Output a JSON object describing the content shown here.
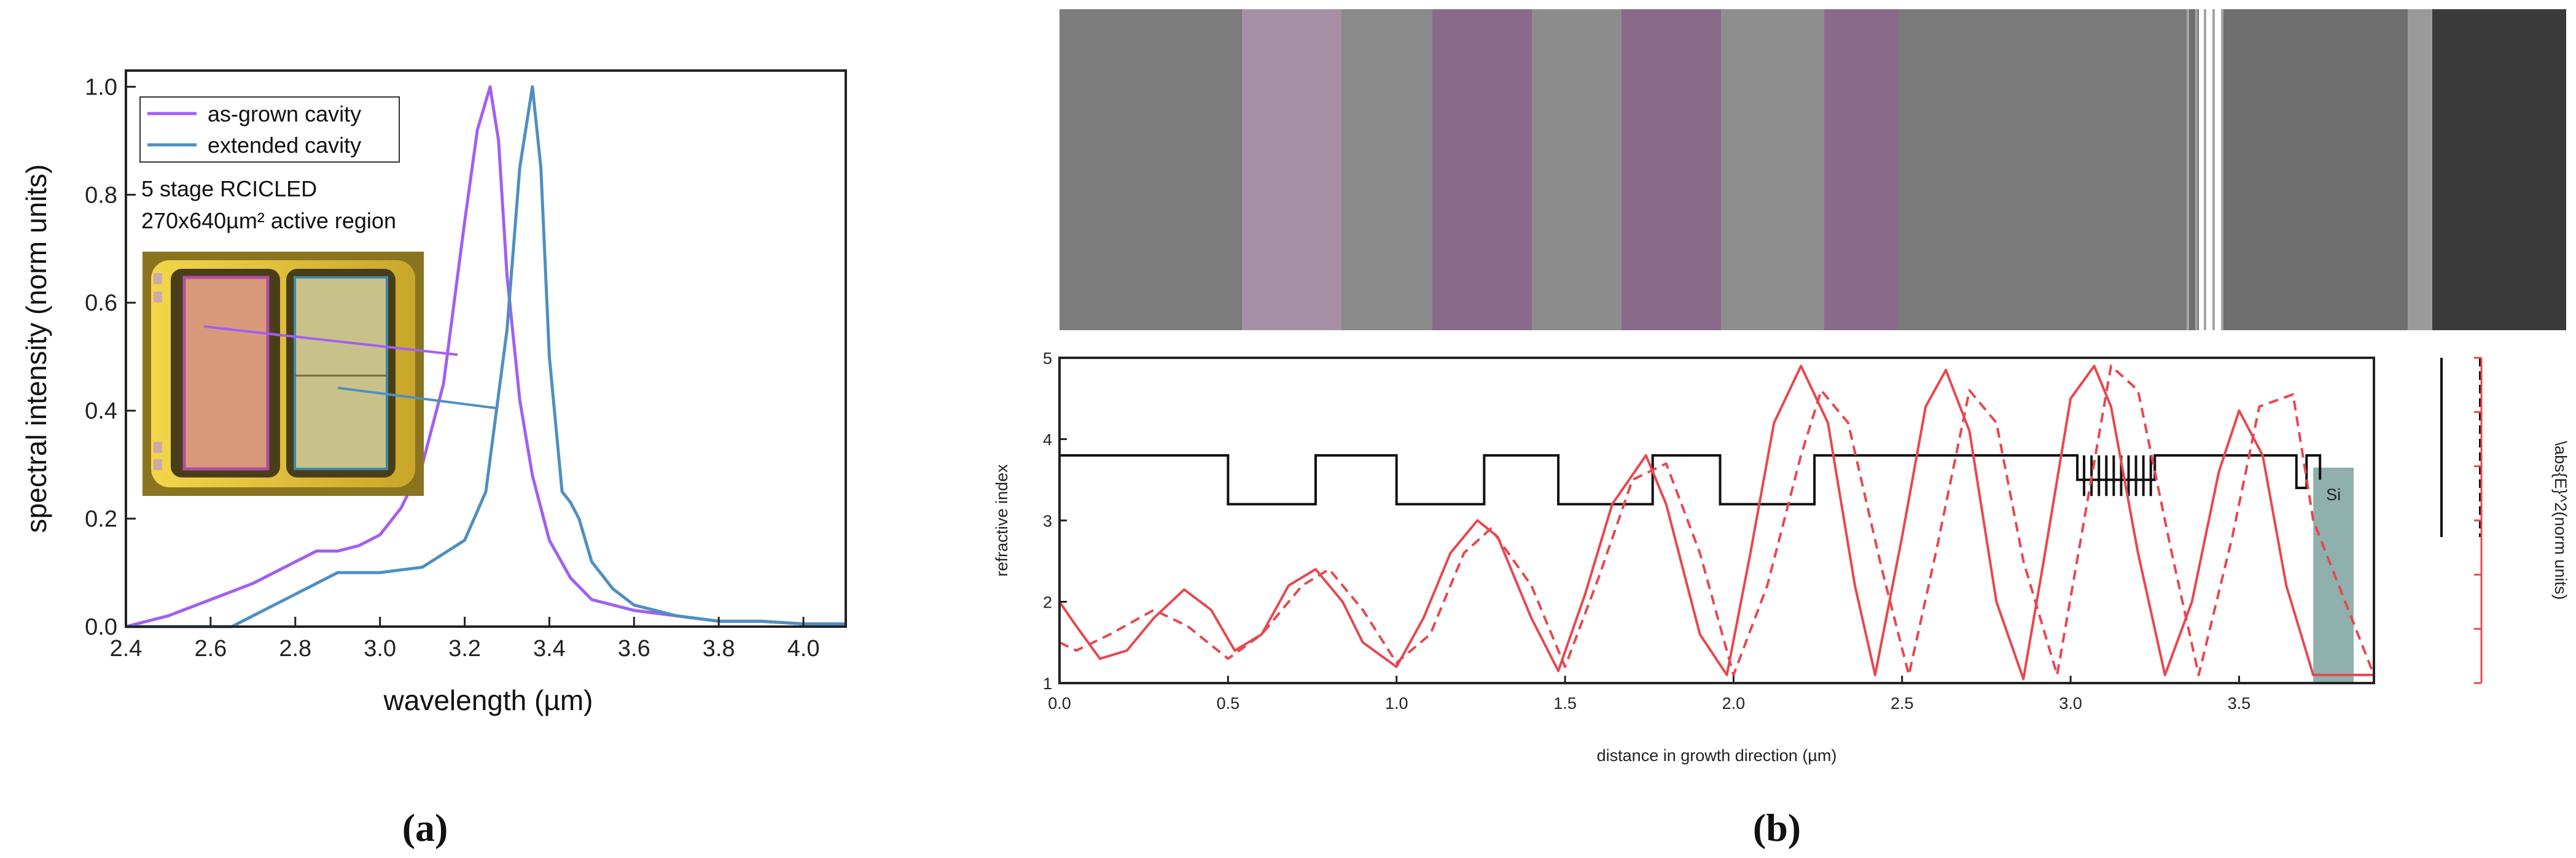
{
  "panel_labels": [
    "(a)",
    "(b)"
  ],
  "chart_data": [
    {
      "type": "line",
      "panel": "(a)",
      "xlabel": "wavelength (µm)",
      "ylabel": "spectral intensity (norm units)",
      "xlim": [
        2.4,
        4.1
      ],
      "ylim": [
        0,
        1.03
      ],
      "xticks": [
        "2.4",
        "2.6",
        "2.8",
        "3.0",
        "3.2",
        "3.4",
        "3.6",
        "3.8",
        "4.0"
      ],
      "yticks": [
        "0.0",
        "0.2",
        "0.4",
        "0.6",
        "0.8",
        "1.0"
      ],
      "legend_position": "top-left",
      "annotation": [
        "5 stage RCICLED",
        "270x640µm² active region"
      ],
      "series": [
        {
          "name": "as-grown cavity",
          "color": "#a25ff2",
          "x": [
            2.4,
            2.5,
            2.6,
            2.7,
            2.75,
            2.8,
            2.85,
            2.9,
            2.95,
            3.0,
            3.05,
            3.1,
            3.15,
            3.2,
            3.23,
            3.26,
            3.28,
            3.3,
            3.33,
            3.36,
            3.4,
            3.45,
            3.5,
            3.55,
            3.6,
            3.7,
            3.8,
            3.9,
            4.0,
            4.1
          ],
          "y": [
            0.0,
            0.02,
            0.05,
            0.08,
            0.1,
            0.12,
            0.14,
            0.14,
            0.15,
            0.17,
            0.22,
            0.3,
            0.45,
            0.75,
            0.92,
            1.0,
            0.9,
            0.65,
            0.42,
            0.28,
            0.16,
            0.09,
            0.05,
            0.04,
            0.03,
            0.02,
            0.01,
            0.01,
            0.005,
            0.005
          ]
        },
        {
          "name": "extended cavity",
          "color": "#4f8fc0",
          "x": [
            2.4,
            2.6,
            2.65,
            2.7,
            2.75,
            2.8,
            2.85,
            2.9,
            3.0,
            3.1,
            3.2,
            3.25,
            3.3,
            3.33,
            3.36,
            3.38,
            3.4,
            3.43,
            3.45,
            3.47,
            3.5,
            3.55,
            3.6,
            3.65,
            3.7,
            3.8,
            3.9,
            4.0,
            4.1
          ],
          "y": [
            0.0,
            0.0,
            0.0,
            0.02,
            0.04,
            0.06,
            0.08,
            0.1,
            0.1,
            0.11,
            0.16,
            0.25,
            0.55,
            0.85,
            1.0,
            0.85,
            0.5,
            0.25,
            0.23,
            0.2,
            0.12,
            0.07,
            0.04,
            0.03,
            0.02,
            0.01,
            0.01,
            0.005,
            0.005
          ]
        }
      ]
    },
    {
      "type": "line",
      "panel": "(b)",
      "xlabel": "distance in growth direction (µm)",
      "ylabel": "refractive index",
      "ylabel_right": "\\abs{E}^2(norm units)",
      "xlim": [
        0,
        3.9
      ],
      "ylim": [
        1,
        5
      ],
      "xticks": [
        "0.0",
        "0.5",
        "1.0",
        "1.5",
        "2.0",
        "2.5",
        "3.0",
        "3.5"
      ],
      "yticks": [
        "1",
        "2",
        "3",
        "4",
        "5"
      ],
      "substrate_label": "Si",
      "refractive_index_profile": {
        "color": "#111111",
        "x": [
          0,
          0.5,
          0.5,
          0.76,
          0.76,
          1.0,
          1.0,
          1.26,
          1.26,
          1.48,
          1.48,
          1.76,
          1.76,
          1.96,
          1.96,
          2.24,
          2.24,
          3.02,
          3.02,
          3.25,
          3.25,
          3.67,
          3.67,
          3.7,
          3.7,
          3.74,
          3.74
        ],
        "y": [
          3.8,
          3.8,
          3.2,
          3.2,
          3.8,
          3.8,
          3.2,
          3.2,
          3.8,
          3.8,
          3.2,
          3.2,
          3.8,
          3.8,
          3.2,
          3.2,
          3.8,
          3.8,
          3.5,
          3.5,
          3.8,
          3.8,
          3.4,
          3.4,
          3.8,
          3.8,
          3.5
        ]
      },
      "series": [
        {
          "name": "",
          "color": "#e8474f",
          "dash": false,
          "x": [
            0.0,
            0.05,
            0.12,
            0.2,
            0.28,
            0.37,
            0.45,
            0.52,
            0.6,
            0.68,
            0.76,
            0.84,
            0.9,
            1.0,
            1.08,
            1.16,
            1.24,
            1.3,
            1.4,
            1.48,
            1.56,
            1.64,
            1.74,
            1.8,
            1.9,
            1.98,
            2.05,
            2.12,
            2.2,
            2.28,
            2.36,
            2.42,
            2.5,
            2.57,
            2.63,
            2.7,
            2.78,
            2.86,
            2.92,
            3.0,
            3.07,
            3.12,
            3.2,
            3.28,
            3.36,
            3.44,
            3.5,
            3.57,
            3.64,
            3.72,
            3.9
          ],
          "y": [
            2.0,
            1.7,
            1.3,
            1.4,
            1.8,
            2.15,
            1.9,
            1.4,
            1.6,
            2.2,
            2.4,
            2.0,
            1.5,
            1.2,
            1.8,
            2.6,
            3.0,
            2.8,
            1.8,
            1.15,
            2.1,
            3.2,
            3.8,
            3.2,
            1.6,
            1.1,
            2.6,
            4.2,
            4.9,
            4.2,
            2.2,
            1.1,
            2.8,
            4.4,
            4.85,
            4.1,
            2.0,
            1.05,
            2.5,
            4.5,
            4.9,
            4.4,
            2.6,
            1.1,
            2.0,
            3.6,
            4.35,
            3.8,
            2.2,
            1.1,
            1.1
          ]
        },
        {
          "name": "",
          "color": "#e8474f",
          "dash": true,
          "x": [
            0.0,
            0.05,
            0.15,
            0.28,
            0.38,
            0.5,
            0.6,
            0.72,
            0.8,
            0.9,
            1.0,
            1.1,
            1.2,
            1.28,
            1.4,
            1.5,
            1.6,
            1.7,
            1.8,
            1.9,
            2.0,
            2.1,
            2.2,
            2.26,
            2.34,
            2.44,
            2.52,
            2.6,
            2.7,
            2.78,
            2.86,
            2.96,
            3.04,
            3.12,
            3.2,
            3.3,
            3.38,
            3.48,
            3.56,
            3.66,
            3.72,
            3.9
          ],
          "y": [
            1.5,
            1.4,
            1.6,
            1.9,
            1.7,
            1.3,
            1.6,
            2.2,
            2.4,
            1.9,
            1.25,
            1.6,
            2.6,
            2.9,
            2.2,
            1.2,
            2.3,
            3.5,
            3.7,
            2.6,
            1.1,
            2.2,
            3.8,
            4.6,
            4.2,
            2.4,
            1.1,
            2.6,
            4.6,
            4.2,
            2.5,
            1.1,
            3.0,
            4.9,
            4.6,
            2.6,
            1.1,
            2.8,
            4.4,
            4.55,
            3.0,
            1.1
          ]
        }
      ]
    }
  ]
}
